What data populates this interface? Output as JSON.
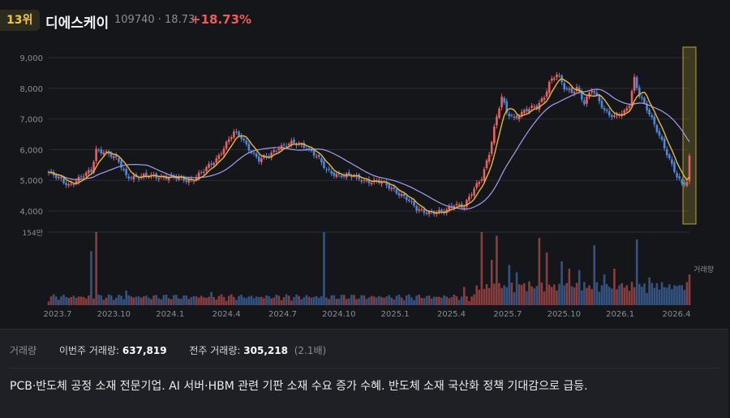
{
  "header": {
    "rank": "13위",
    "name": "디에스케이",
    "code_price": "109740 · 18.73",
    "change": "+18.73%"
  },
  "colors": {
    "up": "#e8605f",
    "down": "#4f86d6",
    "ma_short": "#e8b83a",
    "ma_long": "#a89bf0",
    "highlight": "#f0d640"
  },
  "chart_data": {
    "type": "candlestick",
    "y_ticks": [
      "9,000",
      "8,000",
      "7,000",
      "6,000",
      "5,000",
      "4,000"
    ],
    "y_tick_values": [
      9000,
      8000,
      7000,
      6000,
      5000,
      4000
    ],
    "ylim": [
      3650,
      9300
    ],
    "x_ticks": [
      "2023.7",
      "2023.10",
      "2024.1",
      "2024.4",
      "2024.7",
      "2024.10",
      "2025.1",
      "2025.4",
      "2025.7",
      "2025.10",
      "2026.1",
      "2026.4"
    ],
    "volume_max_label": "154만",
    "volume_axis_label": "거래량",
    "price_keypoints": [
      [
        0,
        5250
      ],
      [
        5,
        5000
      ],
      [
        8,
        4850
      ],
      [
        12,
        5050
      ],
      [
        17,
        5300
      ],
      [
        19,
        6000
      ],
      [
        22,
        5950
      ],
      [
        25,
        5800
      ],
      [
        28,
        5600
      ],
      [
        31,
        5150
      ],
      [
        36,
        5100
      ],
      [
        42,
        5150
      ],
      [
        48,
        5100
      ],
      [
        53,
        5050
      ],
      [
        57,
        5000
      ],
      [
        62,
        5300
      ],
      [
        67,
        5700
      ],
      [
        71,
        6200
      ],
      [
        74,
        6550
      ],
      [
        77,
        6400
      ],
      [
        80,
        6050
      ],
      [
        84,
        5650
      ],
      [
        88,
        5800
      ],
      [
        92,
        6100
      ],
      [
        97,
        6200
      ],
      [
        103,
        6100
      ],
      [
        107,
        5800
      ],
      [
        111,
        5300
      ],
      [
        115,
        5200
      ],
      [
        120,
        5150
      ],
      [
        126,
        5000
      ],
      [
        132,
        4950
      ],
      [
        138,
        4700
      ],
      [
        143,
        4400
      ],
      [
        147,
        4050
      ],
      [
        153,
        3950
      ],
      [
        158,
        3950
      ],
      [
        162,
        4250
      ],
      [
        166,
        4150
      ],
      [
        170,
        4700
      ],
      [
        173,
        5100
      ],
      [
        176,
        5900
      ],
      [
        178,
        6700
      ],
      [
        181,
        7700
      ],
      [
        183,
        7200
      ],
      [
        186,
        7050
      ],
      [
        190,
        7250
      ],
      [
        195,
        7400
      ],
      [
        198,
        7750
      ],
      [
        200,
        8200
      ],
      [
        203,
        8450
      ],
      [
        206,
        8000
      ],
      [
        209,
        7900
      ],
      [
        211,
        8050
      ],
      [
        214,
        7500
      ],
      [
        217,
        7950
      ],
      [
        220,
        7600
      ],
      [
        222,
        7300
      ],
      [
        226,
        7050
      ],
      [
        230,
        7200
      ],
      [
        232,
        7500
      ],
      [
        234,
        8350
      ],
      [
        236,
        7800
      ],
      [
        239,
        7300
      ],
      [
        242,
        6800
      ],
      [
        245,
        6300
      ],
      [
        248,
        5700
      ],
      [
        251,
        5100
      ],
      [
        253,
        4850
      ],
      [
        255,
        4950
      ],
      [
        256,
        5800
      ]
    ],
    "big_volume_bars": [
      [
        17,
        0.74
      ],
      [
        19,
        1.0
      ],
      [
        31,
        0.2
      ],
      [
        65,
        0.18
      ],
      [
        110,
        1.0
      ],
      [
        166,
        0.25
      ],
      [
        173,
        1.0
      ],
      [
        177,
        0.62
      ],
      [
        179,
        0.95
      ],
      [
        184,
        0.55
      ],
      [
        187,
        0.45
      ],
      [
        190,
        0.3
      ],
      [
        196,
        0.92
      ],
      [
        199,
        0.72
      ],
      [
        205,
        0.6
      ],
      [
        208,
        0.5
      ],
      [
        212,
        0.48
      ],
      [
        218,
        0.82
      ],
      [
        222,
        0.42
      ],
      [
        226,
        0.5
      ],
      [
        229,
        0.3
      ],
      [
        235,
        0.9
      ],
      [
        240,
        0.38
      ],
      [
        243,
        0.3
      ],
      [
        247,
        0.24
      ],
      [
        251,
        0.26
      ],
      [
        256,
        0.42
      ]
    ]
  },
  "volume_panel": {
    "label": "거래량",
    "this_week_label": "이번주 거래량:",
    "this_week_value": "637,819",
    "prev_week_label": "전주 거래량:",
    "prev_week_value": "305,218",
    "ratio": "(2.1배)"
  },
  "description": "PCB·반도체 공정 소재 전문기업. AI 서버·HBM 관련 기판 소재 수요 증가 수혜. 반도체 소재 국산화 정책 기대감으로 급등."
}
